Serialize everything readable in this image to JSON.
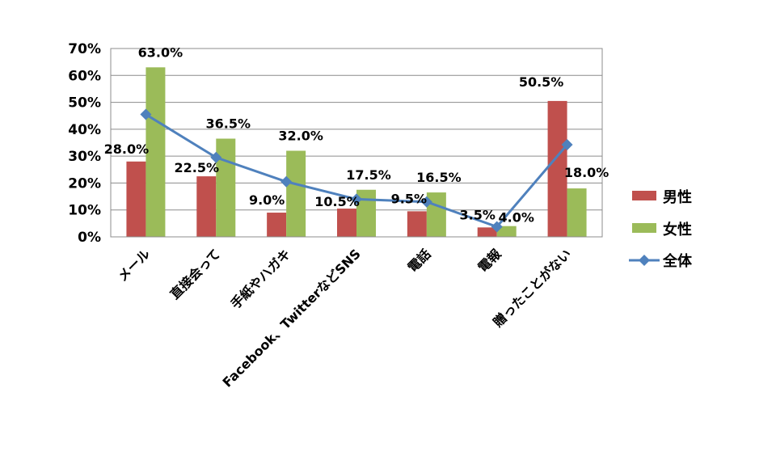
{
  "chart_data": {
    "type": "bar",
    "categories": [
      "メール",
      "直接会って",
      "手紙やハガキ",
      "Facebook、TwitterなどSNS",
      "電話",
      "電報",
      "贈ったことがない"
    ],
    "series": [
      {
        "name": "男性",
        "type": "bar",
        "values": [
          28.0,
          22.5,
          9.0,
          10.5,
          9.5,
          3.5,
          50.5
        ]
      },
      {
        "name": "女性",
        "type": "bar",
        "values": [
          63.0,
          36.5,
          32.0,
          17.5,
          16.5,
          4.0,
          18.0
        ]
      },
      {
        "name": "全体",
        "type": "line",
        "values": [
          45.5,
          29.5,
          20.5,
          14.0,
          13.0,
          3.75,
          34.25
        ]
      }
    ],
    "data_labels": [
      "28.0%",
      "22.5%",
      "9.0%",
      "10.5%",
      "9.5%",
      "3.5%",
      "50.5%",
      "63.0%",
      "36.5%",
      "32.0%",
      "17.5%",
      "16.5%",
      "4.0%",
      "18.0%"
    ],
    "y_ticks": [
      "0%",
      "10%",
      "20%",
      "30%",
      "40%",
      "50%",
      "60%",
      "70%"
    ],
    "ylim": [
      0,
      70
    ],
    "grid": true,
    "legend": "right",
    "colors": {
      "男性": "#c0504d",
      "女性": "#9bbb59",
      "全体": "#4f81bd"
    }
  }
}
